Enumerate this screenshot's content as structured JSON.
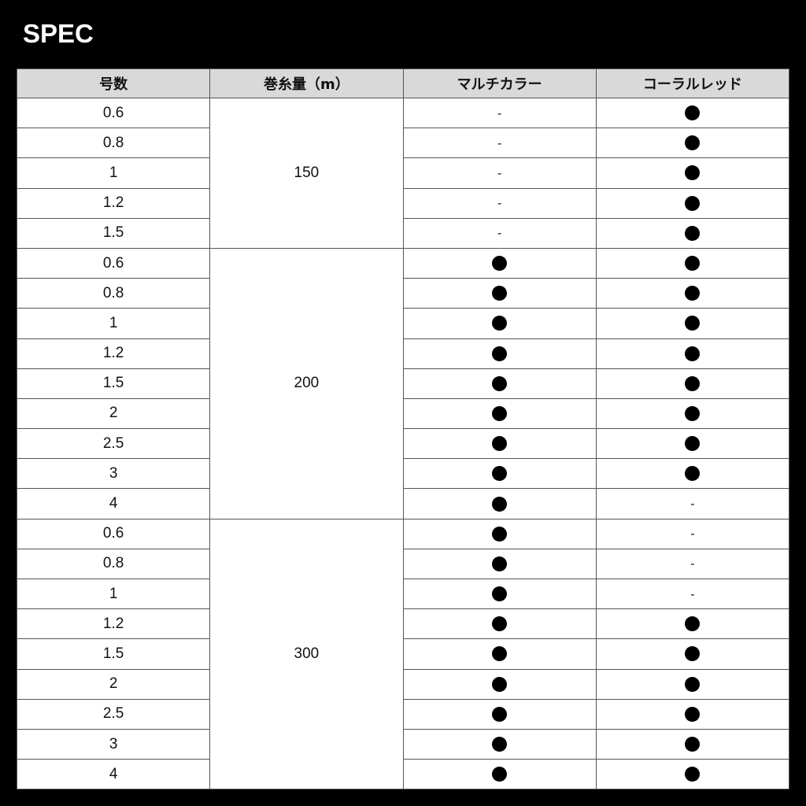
{
  "title": "SPEC",
  "headers": [
    "号数",
    "巻糸量（m）",
    "マルチカラー",
    "コーラルレッド"
  ],
  "available_mark": "●",
  "unavailable_mark": "-",
  "groups": [
    {
      "length": "150",
      "rows": [
        {
          "size": "0.6",
          "multi": false,
          "coral": true
        },
        {
          "size": "0.8",
          "multi": false,
          "coral": true
        },
        {
          "size": "1",
          "multi": false,
          "coral": true
        },
        {
          "size": "1.2",
          "multi": false,
          "coral": true
        },
        {
          "size": "1.5",
          "multi": false,
          "coral": true
        }
      ]
    },
    {
      "length": "200",
      "rows": [
        {
          "size": "0.6",
          "multi": true,
          "coral": true
        },
        {
          "size": "0.8",
          "multi": true,
          "coral": true
        },
        {
          "size": "1",
          "multi": true,
          "coral": true
        },
        {
          "size": "1.2",
          "multi": true,
          "coral": true
        },
        {
          "size": "1.5",
          "multi": true,
          "coral": true
        },
        {
          "size": "2",
          "multi": true,
          "coral": true
        },
        {
          "size": "2.5",
          "multi": true,
          "coral": true
        },
        {
          "size": "3",
          "multi": true,
          "coral": true
        },
        {
          "size": "4",
          "multi": true,
          "coral": false
        }
      ]
    },
    {
      "length": "300",
      "rows": [
        {
          "size": "0.6",
          "multi": true,
          "coral": false
        },
        {
          "size": "0.8",
          "multi": true,
          "coral": false
        },
        {
          "size": "1",
          "multi": true,
          "coral": false
        },
        {
          "size": "1.2",
          "multi": true,
          "coral": true
        },
        {
          "size": "1.5",
          "multi": true,
          "coral": true
        },
        {
          "size": "2",
          "multi": true,
          "coral": true
        },
        {
          "size": "2.5",
          "multi": true,
          "coral": true
        },
        {
          "size": "3",
          "multi": true,
          "coral": true
        },
        {
          "size": "4",
          "multi": true,
          "coral": true
        }
      ]
    }
  ]
}
